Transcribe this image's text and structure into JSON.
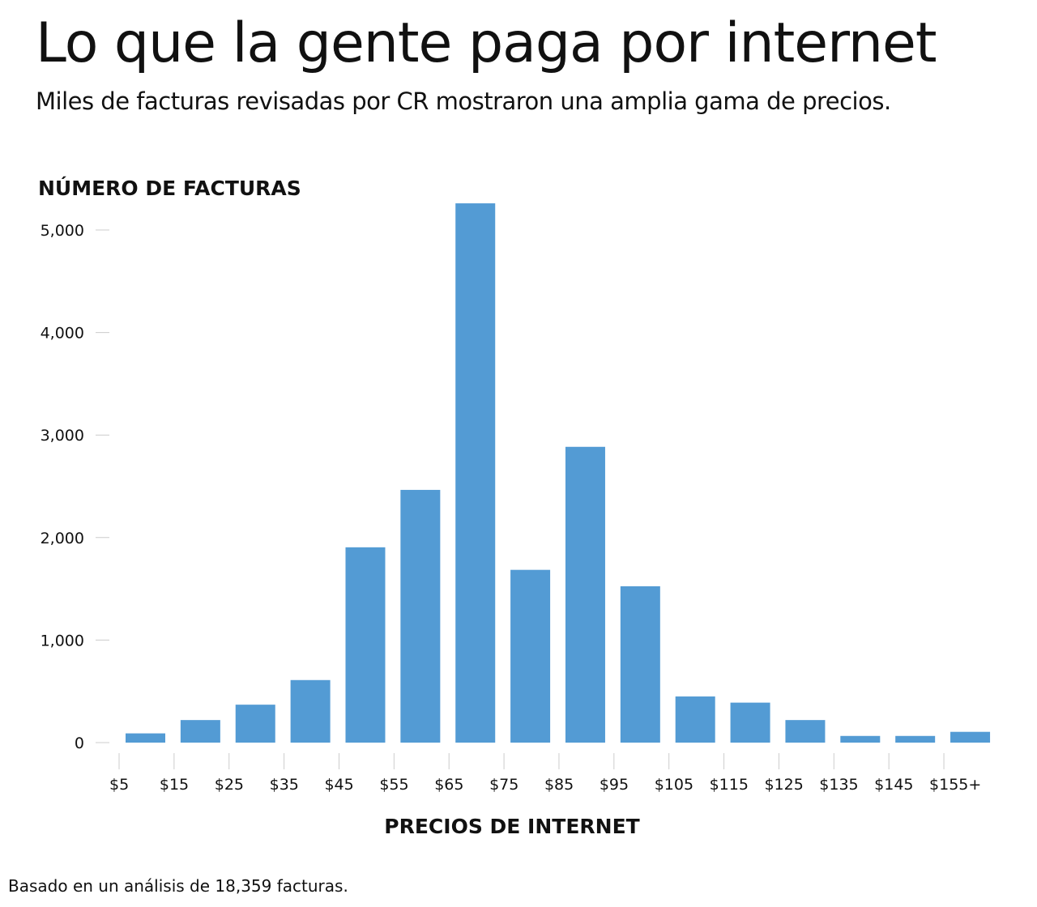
{
  "title": "Lo que la gente paga por internet",
  "subtitle": "Miles de facturas revisadas por CR mostraron una amplia gama de precios.",
  "note": "Basado en un análisis de 18,359 facturas.",
  "chart_data": {
    "type": "bar",
    "title": "Lo que la gente paga por internet",
    "ylabel": "NÚMERO DE FACTURAS",
    "xlabel": "PRECIOS DE INTERNET",
    "categories": [
      "$5-15",
      "$15-25",
      "$25-35",
      "$35-45",
      "$45-55",
      "$55-65",
      "$65-75",
      "$75-85",
      "$85-95",
      "$95-105",
      "$105-115",
      "$115-125",
      "$125-135",
      "$135-145",
      "$145-155",
      "$155+"
    ],
    "x_tick_labels": [
      "$5",
      "$15",
      "$25",
      "$35",
      "$45",
      "$55",
      "$65",
      "$75",
      "$85",
      "$95",
      "$105",
      "$115",
      "$125",
      "$135",
      "$145",
      "$155+"
    ],
    "values": [
      90,
      220,
      370,
      610,
      1905,
      2465,
      5260,
      1685,
      2885,
      1525,
      450,
      390,
      220,
      65,
      65,
      105
    ],
    "y_ticks": [
      0,
      1000,
      2000,
      3000,
      4000,
      5000
    ],
    "y_tick_labels": [
      "0",
      "1,000",
      "2,000",
      "3,000",
      "4,000",
      "5,000"
    ],
    "ylim": [
      0,
      5000
    ],
    "bar_color": "#539bd4",
    "grid": false
  }
}
